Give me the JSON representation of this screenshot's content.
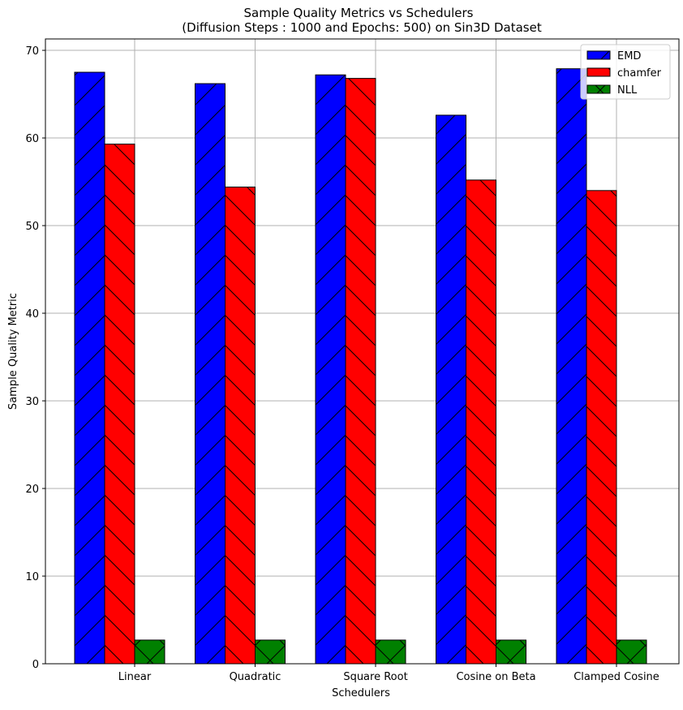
{
  "chart_data": {
    "type": "bar",
    "title": "Sample Quality Metrics vs Schedulers",
    "subtitle": "(Diffusion Steps : 1000 and Epochs: 500) on Sin3D Dataset",
    "xlabel": "Schedulers",
    "ylabel": "Sample Quality Metric",
    "categories": [
      "Linear",
      "Quadratic",
      "Square Root",
      "Cosine on Beta",
      "Clamped Cosine"
    ],
    "series": [
      {
        "name": "EMD",
        "values": [
          67.5,
          66.2,
          67.2,
          62.6,
          67.9
        ],
        "color": "#0000ff",
        "hatch": "forward-diagonal"
      },
      {
        "name": "chamfer",
        "values": [
          59.3,
          54.4,
          66.8,
          55.2,
          54.0
        ],
        "color": "#ff0000",
        "hatch": "backward-diagonal"
      },
      {
        "name": "NLL",
        "values": [
          2.7,
          2.7,
          2.7,
          2.7,
          2.7
        ],
        "color": "#008000",
        "hatch": "cross"
      }
    ],
    "ylim": [
      0,
      71.3
    ],
    "yticks": [
      0,
      10,
      20,
      30,
      40,
      50,
      60,
      70
    ],
    "grid": true,
    "legend_position": "top-right"
  }
}
